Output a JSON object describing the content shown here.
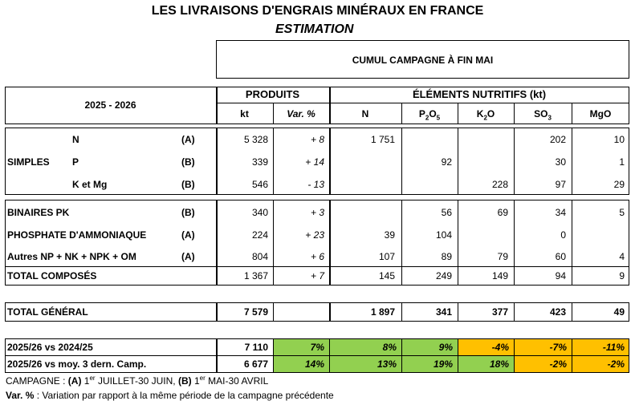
{
  "title": "LES LIVRAISONS D'ENGRAIS MINÉRAUX EN FRANCE",
  "subtitle": "ESTIMATION",
  "cumul_header": "CUMUL CAMPAGNE À FIN MAI",
  "season": "2025 - 2026",
  "produits_header": "PRODUITS",
  "elements_header": "ÉLÉMENTS NUTRITIFS (kt)",
  "col_kt": "kt",
  "col_var": "Var. %",
  "col_n": "N",
  "col_p2o5": {
    "base": "P",
    "sub1": "2",
    "mid": "O",
    "sub2": "5"
  },
  "col_k2o": {
    "base": "K",
    "sub1": "2",
    "mid": "O"
  },
  "col_so3": {
    "base": "SO",
    "sub1": "3"
  },
  "col_mgo": "MgO",
  "simples_label": "SIMPLES",
  "simples": [
    {
      "label": "N",
      "code": "(A)",
      "kt": "5 328",
      "var": "+ 8",
      "n": "1 751",
      "p2o5": "",
      "k2o": "",
      "so3": "202",
      "mgo": "10"
    },
    {
      "label": "P",
      "code": "(B)",
      "kt": "339",
      "var": "+ 14",
      "n": "",
      "p2o5": "92",
      "k2o": "",
      "so3": "30",
      "mgo": "1"
    },
    {
      "label": "K et Mg",
      "code": "(B)",
      "kt": "546",
      "var": "- 13",
      "n": "",
      "p2o5": "",
      "k2o": "228",
      "so3": "97",
      "mgo": "29"
    }
  ],
  "composes": [
    {
      "label": "BINAIRES PK",
      "code": "(B)",
      "kt": "340",
      "var": "+ 3",
      "n": "",
      "p2o5": "56",
      "k2o": "69",
      "so3": "34",
      "mgo": "5"
    },
    {
      "label": "PHOSPHATE D'AMMONIAQUE",
      "code": "(A)",
      "kt": "224",
      "var": "+ 23",
      "n": "39",
      "p2o5": "104",
      "k2o": "",
      "so3": "0",
      "mgo": ""
    },
    {
      "label": "Autres NP + NK + NPK + OM",
      "code": "(A)",
      "kt": "804",
      "var": "+ 6",
      "n": "107",
      "p2o5": "89",
      "k2o": "79",
      "so3": "60",
      "mgo": "4"
    }
  ],
  "total_composes": {
    "label": "TOTAL COMPOSÉS",
    "kt": "1 367",
    "var": "+ 7",
    "n": "145",
    "p2o5": "249",
    "k2o": "149",
    "so3": "94",
    "mgo": "9"
  },
  "total_general": {
    "label": "TOTAL GÉNÉRAL",
    "kt": "7 579",
    "n": "1 897",
    "p2o5": "341",
    "k2o": "377",
    "so3": "423",
    "mgo": "49"
  },
  "comparisons": [
    {
      "label": "2025/26 vs 2024/25",
      "kt": "7 110",
      "var": "7%",
      "n": "8%",
      "p2o5": "9%",
      "k2o": "-4%",
      "so3": "-7%",
      "mgo": "-11%",
      "colors": [
        "green",
        "green",
        "green",
        "orange",
        "orange",
        "orange"
      ]
    },
    {
      "label": "2025/26 vs moy. 3 dern. Camp.",
      "kt": "6 677",
      "var": "14%",
      "n": "13%",
      "p2o5": "19%",
      "k2o": "18%",
      "so3": "-2%",
      "mgo": "-2%",
      "colors": [
        "green",
        "green",
        "green",
        "green",
        "orange",
        "orange"
      ]
    }
  ],
  "colors": {
    "green": "#92d050",
    "orange": "#ffc000"
  },
  "footnote1": {
    "prefix": "CAMPAGNE : ",
    "a": "(A)",
    "a_text1": " 1",
    "a_sup": "er",
    "a_text2": " JUILLET-30 JUIN, ",
    "b": "(B)",
    "b_text1": " 1",
    "b_sup": "er",
    "b_text2": " MAI-30 AVRIL"
  },
  "footnote2": {
    "label": "Var. %",
    "text": " : Variation par rapport à la même période de la campagne précédente"
  }
}
